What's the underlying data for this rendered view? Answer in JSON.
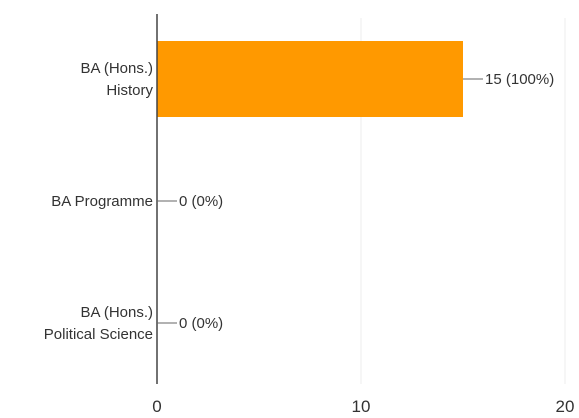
{
  "chart_data": {
    "type": "bar",
    "orientation": "horizontal",
    "categories": [
      [
        "BA (Hons.)",
        "History"
      ],
      [
        "BA Programme"
      ],
      [
        "BA (Hons.)",
        "Political Science"
      ]
    ],
    "values": [
      15,
      0,
      0
    ],
    "data_labels": [
      "15 (100%)",
      "0 (0%)",
      "0 (0%)"
    ],
    "xlim": [
      0,
      20
    ],
    "x_ticks": [
      0,
      10,
      20
    ],
    "x_tick_labels": [
      "0",
      "10",
      "20"
    ],
    "title": "",
    "xlabel": "",
    "ylabel": "",
    "grid": true,
    "bar_color": "#ff9900"
  }
}
